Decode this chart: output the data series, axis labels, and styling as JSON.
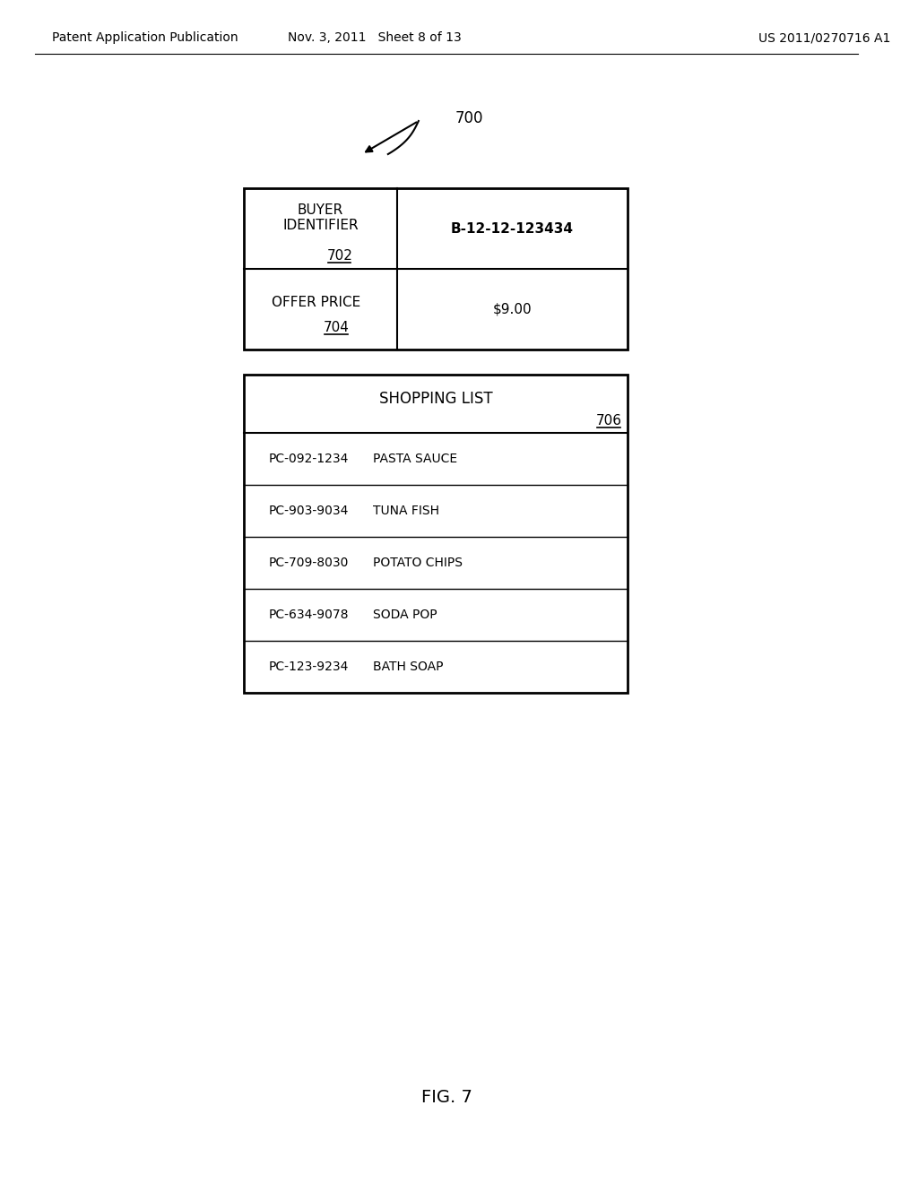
{
  "header_left": "Patent Application Publication",
  "header_mid": "Nov. 3, 2011   Sheet 8 of 13",
  "header_right": "US 2011/0270716 A1",
  "fig_label": "FIG. 7",
  "diagram_label": "700",
  "bg_color": "#ffffff",
  "table1_rows": [
    {
      "label": "BUYER\nIDENTIFIER",
      "ref": "702",
      "value": "B-12-12-123434"
    },
    {
      "label": "OFFER PRICE",
      "ref": "704",
      "value": "$9.00"
    }
  ],
  "table2_title": "SHOPPING LIST",
  "table2_ref": "706",
  "table2_items": [
    {
      "code": "PC-092-1234",
      "name": "PASTA SAUCE"
    },
    {
      "code": "PC-903-9034",
      "name": "TUNA FISH"
    },
    {
      "code": "PC-709-8030",
      "name": "POTATO CHIPS"
    },
    {
      "code": "PC-634-9078",
      "name": "SODA POP"
    },
    {
      "code": "PC-123-9234",
      "name": "BATH SOAP"
    }
  ],
  "font_family": "DejaVu Sans",
  "header_fontsize": 10,
  "body_fontsize": 11,
  "title_fontsize": 12,
  "fig_label_fontsize": 14
}
